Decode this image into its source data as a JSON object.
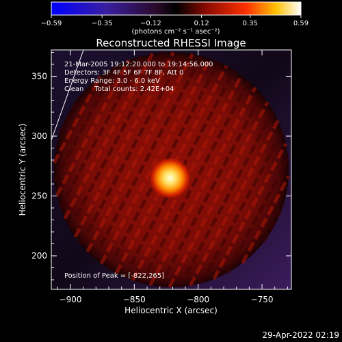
{
  "chart_data": {
    "type": "heatmap",
    "title": "Reconstructed RHESSI Image",
    "xlabel": "Heliocentric X (arcsec)",
    "ylabel": "Heliocentric Y (arcsec)",
    "xlim": [
      -915,
      -727
    ],
    "ylim": [
      172,
      372
    ],
    "x_ticks": [
      -900,
      -850,
      -800,
      -750
    ],
    "y_ticks": [
      200,
      250,
      300,
      350
    ],
    "x_tick_labels": [
      "−900",
      "−850",
      "−800",
      "−750"
    ],
    "y_tick_labels": [
      "200",
      "250",
      "300",
      "350"
    ],
    "colorbar": {
      "min": -0.59,
      "max": 0.59,
      "ticks": [
        -0.59,
        -0.35,
        -0.12,
        0.12,
        0.35,
        0.59
      ],
      "tick_labels": [
        "−0.59",
        "−0.35",
        "−0.12",
        "0.12",
        "0.35",
        "0.59"
      ],
      "unit_label": "(photons cm⁻² s⁻¹ asec⁻²)"
    },
    "annotations": [
      "21-Mar-2005 19:12:20.000 to 19:14:56.000",
      "Detectors: 3F 4F 5F 6F 7F 8F, Att 0",
      "Energy Range: 3.0 - 6.0 keV",
      "Clean     Total counts: 2.42E+04"
    ],
    "peak_label": "Position of Peak = [-822,265]",
    "peak": {
      "x": -822,
      "y": 265
    },
    "disk_center": {
      "x": -821,
      "y": 272
    },
    "disk_radius": 92,
    "grid": false
  },
  "timestamp": "29-Apr-2022 02:19"
}
